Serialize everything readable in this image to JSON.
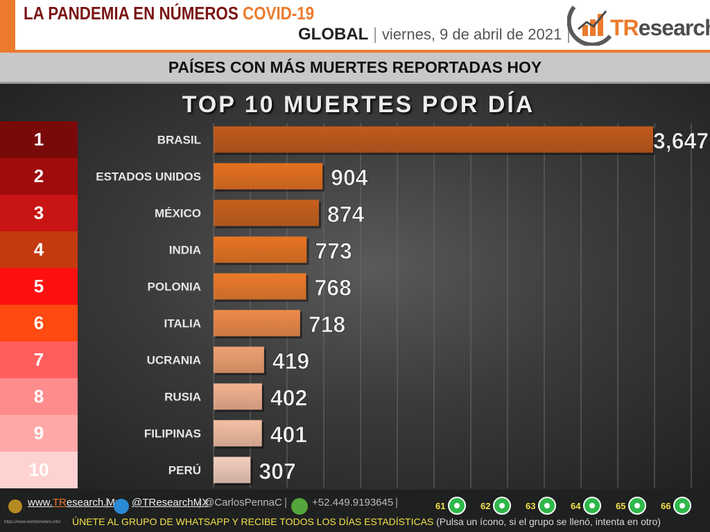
{
  "header": {
    "title_main": "LA PANDEMIA EN NÚMEROS ",
    "title_highlight": "COVID-19",
    "scope": "GLOBAL",
    "date": "viernes, 9 de abril de 2021",
    "brand_prefix": "TR",
    "brand_suffix": "esearch"
  },
  "banner": "PAÍSES CON MÁS MUERTES REPORTADAS HOY",
  "chart_data": {
    "type": "bar",
    "orientation": "horizontal",
    "title": "TOP 10 MUERTES POR DÍA",
    "categories": [
      "BRASIL",
      "ESTADOS UNIDOS",
      "MÉXICO",
      "INDIA",
      "POLONIA",
      "ITALIA",
      "UCRANIA",
      "RUSIA",
      "FILIPINAS",
      "PERÚ"
    ],
    "values": [
      3647,
      904,
      874,
      773,
      768,
      718,
      419,
      402,
      401,
      307
    ],
    "value_labels": [
      "3,647",
      "904",
      "874",
      "773",
      "768",
      "718",
      "419",
      "402",
      "401",
      "307"
    ],
    "ranks": [
      "1",
      "2",
      "3",
      "4",
      "5",
      "6",
      "7",
      "8",
      "9",
      "10"
    ],
    "rank_colors": [
      "#7a0a0a",
      "#a00c0c",
      "#c81414",
      "#c43a10",
      "#ff1010",
      "#ff4a12",
      "#ff5e5e",
      "#ff8c8c",
      "#ffa8a8",
      "#ffd2d2"
    ],
    "bar_colors": [
      "#c25a1c",
      "#e6701e",
      "#c8601c",
      "#e87422",
      "#ec7a2a",
      "#ee8a4a",
      "#f0a070",
      "#f3b391",
      "#f5c0a4",
      "#f4cfc0"
    ],
    "grid": true,
    "legend": "none"
  },
  "footer": {
    "website_prefix": "www.",
    "website_brand": "TR",
    "website_suffix": "esearch.Mx",
    "twitter": "@TResearchMX",
    "author": "@CarlosPennaC",
    "phone": "+52.449.9193645",
    "separator": "|",
    "whatsapp_groups": [
      "61",
      "62",
      "63",
      "64",
      "65",
      "66"
    ],
    "cta": "ÚNETE AL GRUPO DE WHATSAPP Y RECIBE TODOS LOS DÍAS ESTADÍSTICAS",
    "note": " (Pulsa un ícono, si el grupo se llenó, intenta en otro)",
    "source_url": "https://www.worldometers.info/"
  }
}
